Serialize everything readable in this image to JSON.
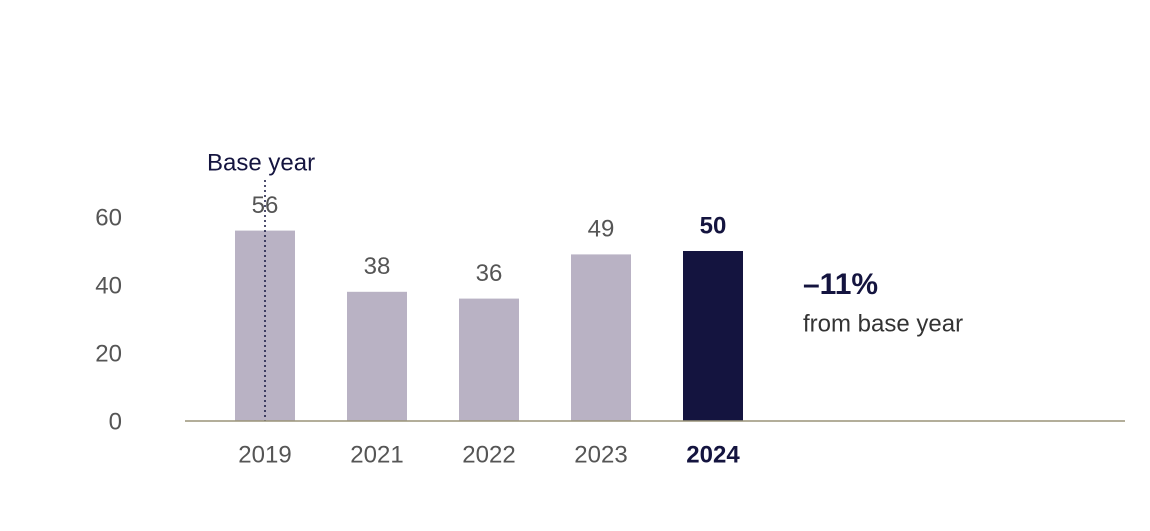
{
  "chart_data": {
    "type": "bar",
    "categories": [
      "2019",
      "2021",
      "2022",
      "2023",
      "2024"
    ],
    "values": [
      56,
      38,
      36,
      49,
      50
    ],
    "color": "#b9b2c4",
    "highlight_color": "#14143f",
    "highlight": "2024",
    "ylim": [
      0,
      60
    ],
    "yticks": [
      0,
      20,
      40,
      60
    ],
    "grid": false,
    "base_label": "Base year",
    "base_category": "2019",
    "annotation": {
      "value": "–11%",
      "text": "from base year"
    }
  }
}
